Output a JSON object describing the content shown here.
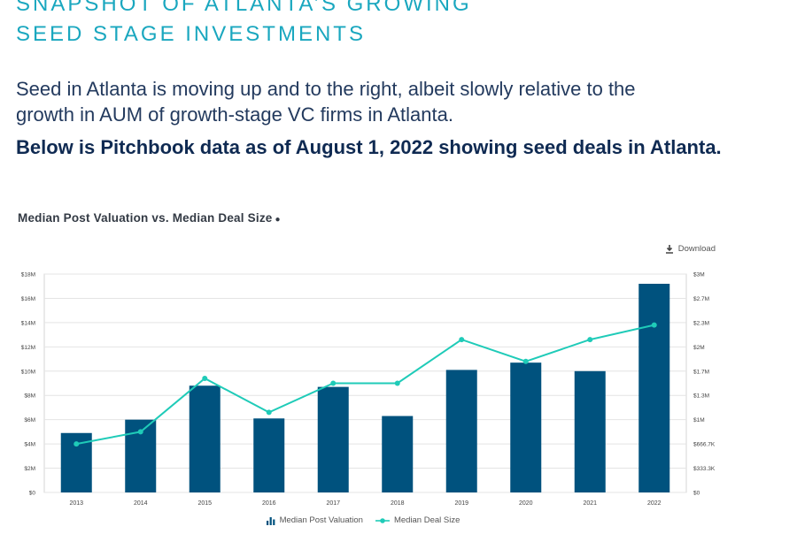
{
  "header": {
    "title_line1": "SNAPSHOT OF ATLANTA’S GROWING",
    "title_line2": "SEED STAGE INVESTMENTS",
    "intro_line1": "Seed in Atlanta is moving up and to the right, albeit slowly relative to the",
    "intro_line2": "growth in AUM of growth-stage VC firms in Atlanta.",
    "bold_line": "Below is Pitchbook data as of August 1, 2022 showing seed deals in Atlanta."
  },
  "chart_data": {
    "type": "bar",
    "title": "Median Post Valuation vs. Median Deal Size",
    "download_label": "Download",
    "categories": [
      "2013",
      "2014",
      "2015",
      "2016",
      "2017",
      "2018",
      "2019",
      "2020",
      "2021",
      "2022"
    ],
    "series": [
      {
        "name": "Median Post Valuation",
        "type": "bar",
        "axis": "left",
        "color": "#00527e",
        "values": [
          4.9,
          6.0,
          8.8,
          6.1,
          8.7,
          6.3,
          10.1,
          10.7,
          10.0,
          17.2
        ]
      },
      {
        "name": "Median Deal Size",
        "type": "line",
        "axis": "right",
        "color": "#1fcbb8",
        "values": [
          0.667,
          0.833,
          1.567,
          1.1,
          1.5,
          1.5,
          2.1,
          1.8,
          2.1,
          2.3
        ]
      }
    ],
    "y_left": {
      "ylim": [
        0,
        18
      ],
      "ticks": [
        0,
        2,
        4,
        6,
        8,
        10,
        12,
        14,
        16,
        18
      ],
      "tick_labels": [
        "$0",
        "$2M",
        "$4M",
        "$6M",
        "$8M",
        "$10M",
        "$12M",
        "$14M",
        "$16M",
        "$18M"
      ]
    },
    "y_right": {
      "ylim": [
        0,
        3
      ],
      "ticks": [
        0,
        0.3333,
        0.6667,
        1,
        1.3333,
        1.6667,
        2,
        2.3333,
        2.6667,
        3
      ],
      "tick_labels": [
        "$0",
        "$333.3K",
        "$666.7K",
        "$1M",
        "$1.3M",
        "$1.7M",
        "$2M",
        "$2.3M",
        "$2.7M",
        "$3M"
      ]
    },
    "grid": true,
    "legend_position": "bottom-center"
  }
}
